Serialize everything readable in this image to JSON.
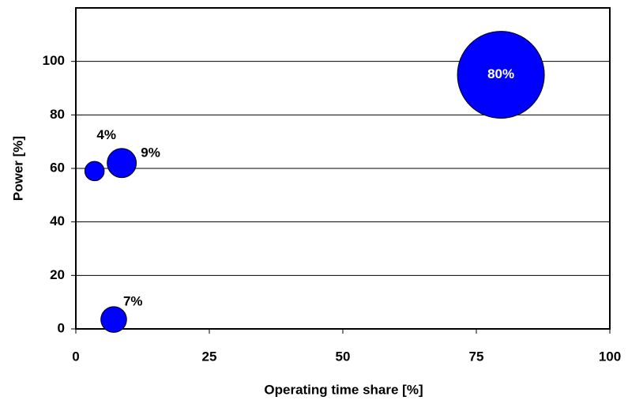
{
  "chart_data": {
    "type": "bubble",
    "x_label": "Operating time share [%]",
    "y_label": "Power [%]",
    "xlim": [
      0,
      100
    ],
    "xticks": [
      0,
      25,
      50,
      75,
      100
    ],
    "ylim": [
      0,
      120
    ],
    "yticks": [
      0,
      20,
      40,
      60,
      80,
      100
    ],
    "grid": true,
    "series": [
      {
        "color": "#0000ff",
        "x": [
          3.5,
          8.6,
          7.1,
          79.6
        ],
        "values": [
          59,
          62,
          3.5,
          95
        ],
        "sizes": [
          4,
          9,
          7,
          80
        ],
        "value_labels": [
          "4%",
          "9%",
          "7%",
          "80%"
        ]
      }
    ]
  }
}
